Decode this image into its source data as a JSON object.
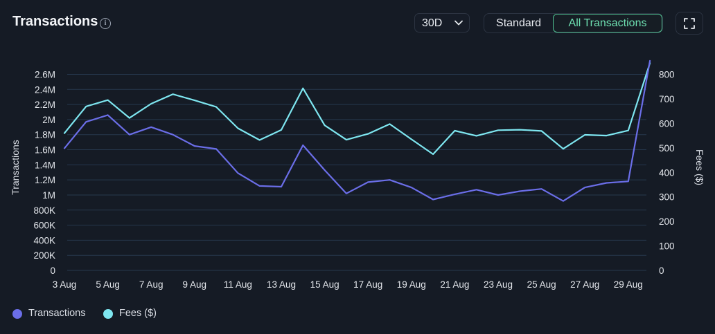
{
  "header": {
    "title": "Transactions",
    "info_icon": "info-icon",
    "range_value": "30D",
    "toggle_options": [
      "Standard",
      "All Transactions"
    ],
    "active_toggle": "All Transactions",
    "expand_icon": "expand-icon"
  },
  "colors": {
    "transactions": "#6b6ee8",
    "fees": "#7ee6f0",
    "grid": "#26384d",
    "background": "#151b25",
    "active_toggle": "#6ee0b1"
  },
  "legend": [
    {
      "label": "Transactions",
      "color": "#6b6ee8"
    },
    {
      "label": "Fees ($)",
      "color": "#7ee6f0"
    }
  ],
  "chart_data": {
    "type": "line",
    "x": [
      "3 Aug",
      "4 Aug",
      "5 Aug",
      "6 Aug",
      "7 Aug",
      "8 Aug",
      "9 Aug",
      "10 Aug",
      "11 Aug",
      "12 Aug",
      "13 Aug",
      "14 Aug",
      "15 Aug",
      "16 Aug",
      "17 Aug",
      "18 Aug",
      "19 Aug",
      "20 Aug",
      "21 Aug",
      "22 Aug",
      "23 Aug",
      "24 Aug",
      "25 Aug",
      "26 Aug",
      "27 Aug",
      "28 Aug",
      "29 Aug",
      "30 Aug"
    ],
    "x_tick_labels": [
      "3 Aug",
      "5 Aug",
      "7 Aug",
      "9 Aug",
      "11 Aug",
      "13 Aug",
      "15 Aug",
      "17 Aug",
      "19 Aug",
      "21 Aug",
      "23 Aug",
      "25 Aug",
      "27 Aug",
      "29 Aug"
    ],
    "y_left_label": "Transactions",
    "y_left_ticks": [
      "0",
      "200K",
      "400K",
      "600K",
      "800K",
      "1M",
      "1.2M",
      "1.4M",
      "1.6M",
      "1.8M",
      "2M",
      "2.2M",
      "2.4M",
      "2.6M"
    ],
    "y_left_lim": [
      0,
      2600000
    ],
    "y_right_label": "Fees ($)",
    "y_right_ticks": [
      "0",
      "100",
      "200",
      "300",
      "400",
      "500",
      "600",
      "700",
      "800"
    ],
    "y_right_lim": [
      0,
      800
    ],
    "grid": true,
    "legend_position": "bottom-left",
    "series": [
      {
        "name": "Transactions",
        "axis": "left",
        "values": [
          1620000,
          1970000,
          2060000,
          1800000,
          1900000,
          1800000,
          1650000,
          1610000,
          1290000,
          1120000,
          1110000,
          1660000,
          1330000,
          1020000,
          1170000,
          1200000,
          1100000,
          940000,
          1010000,
          1070000,
          1000000,
          1050000,
          1080000,
          920000,
          1100000,
          1160000,
          1180000,
          2780000
        ]
      },
      {
        "name": "Fees ($)",
        "axis": "right",
        "values": [
          560,
          669,
          695,
          622,
          680,
          719,
          694,
          667,
          580,
          532,
          573,
          743,
          592,
          533,
          557,
          597,
          535,
          474,
          570,
          549,
          572,
          574,
          569,
          496,
          553,
          550,
          571,
          846
        ]
      }
    ]
  }
}
